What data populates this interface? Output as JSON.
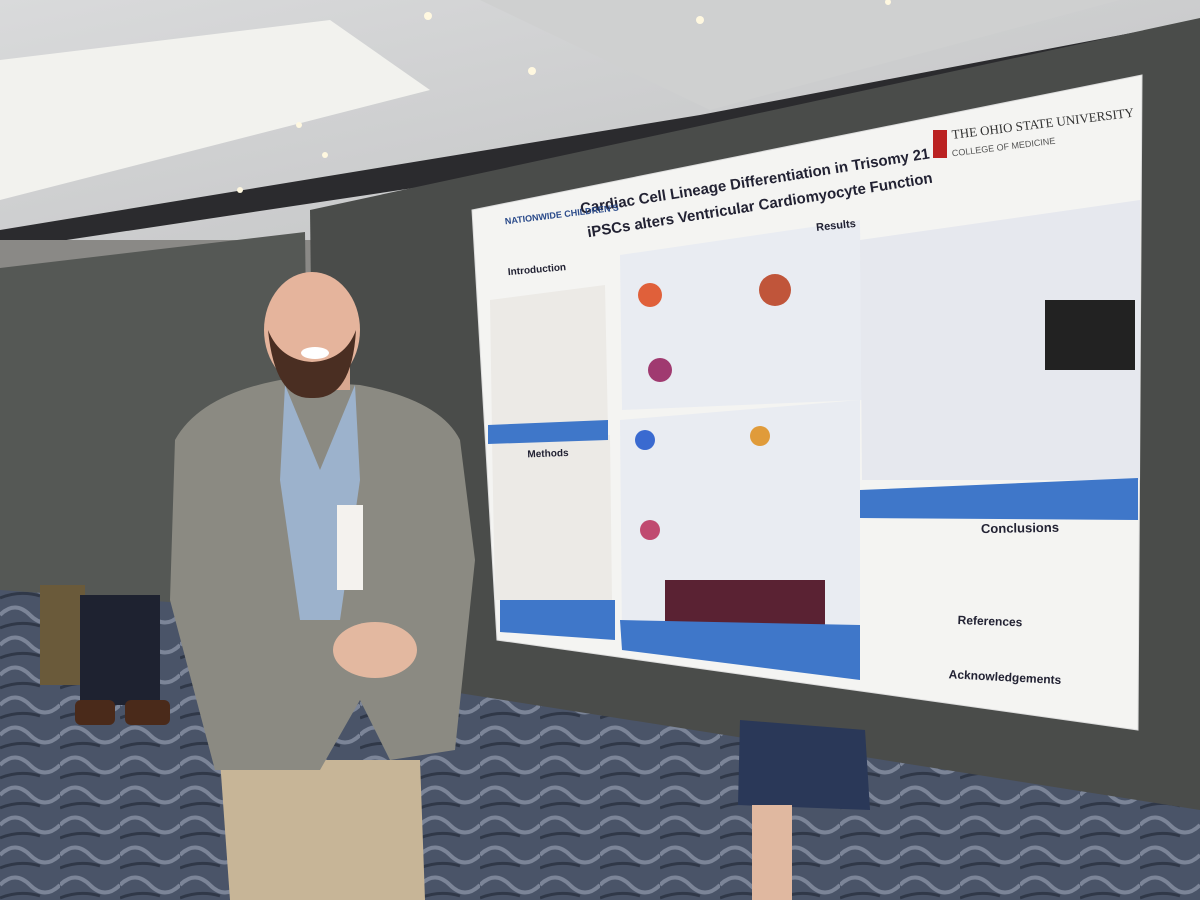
{
  "poster": {
    "title_lines": [
      "Cardiac Cell Lineage Differentiation in Trisomy 21",
      "iPSCs alters Ventricular Cardiomyocyte Function"
    ],
    "left_logo": "NATIONWIDE CHILDREN'S",
    "right_logo": [
      "THE OHIO STATE UNIVERSITY",
      "COLLEGE OF MEDICINE"
    ],
    "sections": [
      "Introduction",
      "Methods",
      "Results",
      "Conclusions",
      "References",
      "Acknowledgements"
    ]
  }
}
